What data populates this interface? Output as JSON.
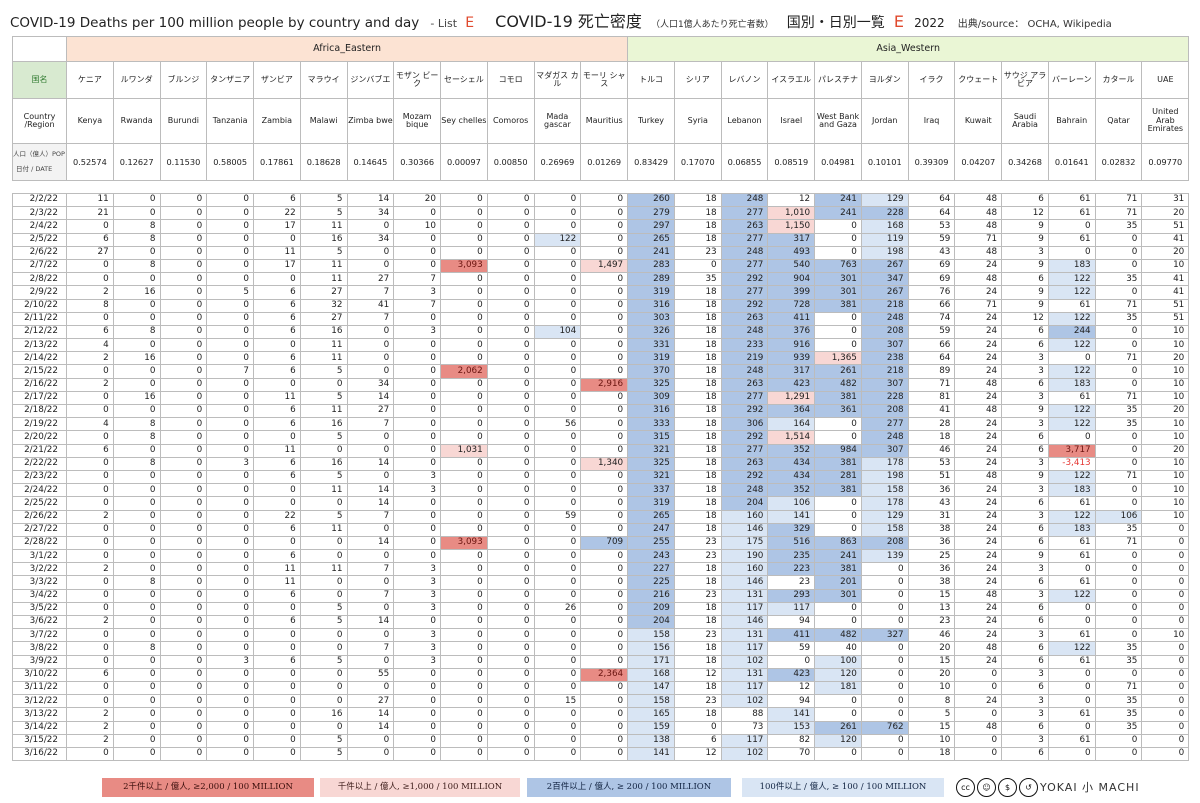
{
  "header": {
    "title_en": "COVID-19 Deaths per 100 million people by country and day",
    "list_label": "- List",
    "list_letter": "E",
    "title_jp": "COVID-19 死亡密度",
    "subtitle_jp": "（人口1億人あたり死亡者数）",
    "title_jp2": "国別・日別一覧",
    "list_letter2": "E",
    "year": "2022",
    "source": "出典/source： OCHA, Wikipedia"
  },
  "regions": [
    {
      "name": "Africa_Eastern",
      "span": 12
    },
    {
      "name": "Asia_Western",
      "span": 12
    }
  ],
  "row_labels": {
    "kokumei": "国名",
    "country_region": "Country /Region",
    "pop_top": "人口（億人）POP（億人）",
    "pop_bottom": "日付 / DATE"
  },
  "countries": [
    {
      "jp": "ケニア",
      "en": "Kenya",
      "pop": "0.52574"
    },
    {
      "jp": "ルワンダ",
      "en": "Rwanda",
      "pop": "0.12627"
    },
    {
      "jp": "ブルンジ",
      "en": "Burundi",
      "pop": "0.11530"
    },
    {
      "jp": "タンザニア",
      "en": "Tanzania",
      "pop": "0.58005"
    },
    {
      "jp": "ザンビア",
      "en": "Zambia",
      "pop": "0.17861"
    },
    {
      "jp": "マラウイ",
      "en": "Malawi",
      "pop": "0.18628"
    },
    {
      "jp": "ジンバブエ",
      "en": "Zimba bwe",
      "pop": "0.14645"
    },
    {
      "jp": "モザン ビーク",
      "en": "Mozam bique",
      "pop": "0.30366"
    },
    {
      "jp": "セーシェル",
      "en": "Sey chelles",
      "pop": "0.00097"
    },
    {
      "jp": "コモロ",
      "en": "Comoros",
      "pop": "0.00850"
    },
    {
      "jp": "マダガス カル",
      "en": "Mada gascar",
      "pop": "0.26969"
    },
    {
      "jp": "モーリ シャス",
      "en": "Mauritius",
      "pop": "0.01269"
    },
    {
      "jp": "トルコ",
      "en": "Turkey",
      "pop": "0.83429"
    },
    {
      "jp": "シリア",
      "en": "Syria",
      "pop": "0.17070"
    },
    {
      "jp": "レバノン",
      "en": "Lebanon",
      "pop": "0.06855"
    },
    {
      "jp": "イスラエル",
      "en": "Israel",
      "pop": "0.08519"
    },
    {
      "jp": "パレスチナ",
      "en": "West Bank and Gaza",
      "pop": "0.04981"
    },
    {
      "jp": "ヨルダン",
      "en": "Jordan",
      "pop": "0.10101"
    },
    {
      "jp": "イラク",
      "en": "Iraq",
      "pop": "0.39309"
    },
    {
      "jp": "クウェート",
      "en": "Kuwait",
      "pop": "0.04207"
    },
    {
      "jp": "サウジ アラビア",
      "en": "Saudi Arabia",
      "pop": "0.34268"
    },
    {
      "jp": "バーレーン",
      "en": "Bahrain",
      "pop": "0.01641"
    },
    {
      "jp": "カタール",
      "en": "Qatar",
      "pop": "0.02832"
    },
    {
      "jp": "UAE",
      "en": "United Arab Emirates",
      "pop": "0.09770"
    }
  ],
  "rows": [
    {
      "date": "2/2/22",
      "v": [
        "11",
        "0",
        "0",
        "0",
        "6",
        "5",
        "14",
        "20",
        "0",
        "0",
        "0",
        "0",
        "260",
        "18",
        "248",
        "12",
        "241",
        "129",
        "64",
        "48",
        "6",
        "61",
        "71",
        "31"
      ]
    },
    {
      "date": "2/3/22",
      "v": [
        "21",
        "0",
        "0",
        "0",
        "22",
        "5",
        "34",
        "0",
        "0",
        "0",
        "0",
        "0",
        "279",
        "18",
        "277",
        "1,010",
        "241",
        "228",
        "64",
        "48",
        "12",
        "61",
        "71",
        "20"
      ]
    },
    {
      "date": "2/4/22",
      "v": [
        "0",
        "8",
        "0",
        "0",
        "17",
        "11",
        "0",
        "10",
        "0",
        "0",
        "0",
        "0",
        "297",
        "18",
        "263",
        "1,150",
        "0",
        "168",
        "53",
        "48",
        "9",
        "0",
        "35",
        "51"
      ]
    },
    {
      "date": "2/5/22",
      "v": [
        "6",
        "8",
        "0",
        "0",
        "0",
        "16",
        "34",
        "0",
        "0",
        "0",
        "122",
        "0",
        "265",
        "18",
        "277",
        "317",
        "0",
        "119",
        "59",
        "71",
        "9",
        "61",
        "0",
        "41"
      ]
    },
    {
      "date": "2/6/22",
      "v": [
        "27",
        "0",
        "0",
        "0",
        "11",
        "5",
        "0",
        "0",
        "0",
        "0",
        "0",
        "0",
        "241",
        "23",
        "248",
        "493",
        "0",
        "198",
        "43",
        "48",
        "3",
        "0",
        "0",
        "20"
      ]
    },
    {
      "date": "2/7/22",
      "v": [
        "0",
        "8",
        "0",
        "0",
        "17",
        "11",
        "0",
        "0",
        "3,093",
        "0",
        "0",
        "1,497",
        "283",
        "0",
        "277",
        "540",
        "763",
        "267",
        "69",
        "24",
        "9",
        "183",
        "0",
        "10"
      ]
    },
    {
      "date": "2/8/22",
      "v": [
        "0",
        "0",
        "0",
        "0",
        "0",
        "11",
        "27",
        "7",
        "0",
        "0",
        "0",
        "0",
        "289",
        "35",
        "292",
        "904",
        "301",
        "347",
        "69",
        "48",
        "6",
        "122",
        "35",
        "41"
      ]
    },
    {
      "date": "2/9/22",
      "v": [
        "2",
        "16",
        "0",
        "5",
        "6",
        "27",
        "7",
        "3",
        "0",
        "0",
        "0",
        "0",
        "319",
        "18",
        "277",
        "399",
        "301",
        "267",
        "76",
        "24",
        "9",
        "122",
        "0",
        "41"
      ]
    },
    {
      "date": "2/10/22",
      "v": [
        "8",
        "0",
        "0",
        "0",
        "6",
        "32",
        "41",
        "7",
        "0",
        "0",
        "0",
        "0",
        "316",
        "18",
        "292",
        "728",
        "381",
        "218",
        "66",
        "71",
        "9",
        "61",
        "71",
        "51"
      ]
    },
    {
      "date": "2/11/22",
      "v": [
        "0",
        "0",
        "0",
        "0",
        "6",
        "27",
        "7",
        "0",
        "0",
        "0",
        "0",
        "0",
        "303",
        "18",
        "263",
        "411",
        "0",
        "248",
        "74",
        "24",
        "12",
        "122",
        "35",
        "51"
      ]
    },
    {
      "date": "2/12/22",
      "v": [
        "6",
        "8",
        "0",
        "0",
        "6",
        "16",
        "0",
        "3",
        "0",
        "0",
        "104",
        "0",
        "326",
        "18",
        "248",
        "376",
        "0",
        "208",
        "59",
        "24",
        "6",
        "244",
        "0",
        "10"
      ]
    },
    {
      "date": "2/13/22",
      "v": [
        "4",
        "0",
        "0",
        "0",
        "0",
        "11",
        "0",
        "0",
        "0",
        "0",
        "0",
        "0",
        "331",
        "18",
        "233",
        "916",
        "0",
        "307",
        "66",
        "24",
        "6",
        "122",
        "0",
        "10"
      ]
    },
    {
      "date": "2/14/22",
      "v": [
        "2",
        "16",
        "0",
        "0",
        "6",
        "11",
        "0",
        "0",
        "0",
        "0",
        "0",
        "0",
        "319",
        "18",
        "219",
        "939",
        "1,365",
        "238",
        "64",
        "24",
        "3",
        "0",
        "71",
        "20"
      ]
    },
    {
      "date": "2/15/22",
      "v": [
        "0",
        "0",
        "0",
        "7",
        "6",
        "5",
        "0",
        "0",
        "2,062",
        "0",
        "0",
        "0",
        "370",
        "18",
        "248",
        "317",
        "261",
        "218",
        "89",
        "24",
        "3",
        "122",
        "0",
        "10"
      ]
    },
    {
      "date": "2/16/22",
      "v": [
        "2",
        "0",
        "0",
        "0",
        "0",
        "0",
        "34",
        "0",
        "0",
        "0",
        "0",
        "2,916",
        "325",
        "18",
        "263",
        "423",
        "482",
        "307",
        "71",
        "48",
        "6",
        "183",
        "0",
        "10"
      ]
    },
    {
      "date": "2/17/22",
      "v": [
        "0",
        "16",
        "0",
        "0",
        "11",
        "5",
        "14",
        "0",
        "0",
        "0",
        "0",
        "0",
        "309",
        "18",
        "277",
        "1,291",
        "381",
        "228",
        "81",
        "24",
        "3",
        "61",
        "71",
        "10"
      ]
    },
    {
      "date": "2/18/22",
      "v": [
        "0",
        "0",
        "0",
        "0",
        "6",
        "11",
        "27",
        "0",
        "0",
        "0",
        "0",
        "0",
        "316",
        "18",
        "292",
        "364",
        "361",
        "208",
        "41",
        "48",
        "9",
        "122",
        "35",
        "20"
      ]
    },
    {
      "date": "2/19/22",
      "v": [
        "4",
        "8",
        "0",
        "0",
        "6",
        "16",
        "7",
        "0",
        "0",
        "0",
        "56",
        "0",
        "333",
        "18",
        "306",
        "164",
        "0",
        "277",
        "28",
        "24",
        "3",
        "122",
        "35",
        "10"
      ]
    },
    {
      "date": "2/20/22",
      "v": [
        "0",
        "8",
        "0",
        "0",
        "0",
        "5",
        "0",
        "0",
        "0",
        "0",
        "0",
        "0",
        "315",
        "18",
        "292",
        "1,514",
        "0",
        "248",
        "18",
        "24",
        "6",
        "0",
        "0",
        "10"
      ]
    },
    {
      "date": "2/21/22",
      "v": [
        "6",
        "0",
        "0",
        "0",
        "11",
        "0",
        "0",
        "0",
        "1,031",
        "0",
        "0",
        "0",
        "321",
        "18",
        "277",
        "352",
        "984",
        "307",
        "46",
        "24",
        "6",
        "3,717",
        "0",
        "20"
      ]
    },
    {
      "date": "2/22/22",
      "v": [
        "0",
        "8",
        "0",
        "3",
        "6",
        "16",
        "14",
        "0",
        "0",
        "0",
        "0",
        "1,340",
        "325",
        "18",
        "263",
        "434",
        "381",
        "178",
        "53",
        "24",
        "3",
        "-3,413",
        "0",
        "10"
      ]
    },
    {
      "date": "2/23/22",
      "v": [
        "0",
        "0",
        "0",
        "0",
        "6",
        "5",
        "0",
        "3",
        "0",
        "0",
        "0",
        "0",
        "321",
        "18",
        "292",
        "434",
        "281",
        "198",
        "51",
        "48",
        "9",
        "122",
        "71",
        "10"
      ]
    },
    {
      "date": "2/24/22",
      "v": [
        "0",
        "0",
        "0",
        "0",
        "0",
        "11",
        "14",
        "3",
        "0",
        "0",
        "0",
        "0",
        "337",
        "18",
        "248",
        "352",
        "381",
        "158",
        "36",
        "24",
        "3",
        "183",
        "0",
        "10"
      ]
    },
    {
      "date": "2/25/22",
      "v": [
        "0",
        "0",
        "0",
        "0",
        "0",
        "0",
        "14",
        "0",
        "0",
        "0",
        "0",
        "0",
        "319",
        "18",
        "204",
        "106",
        "0",
        "178",
        "43",
        "24",
        "6",
        "61",
        "0",
        "10"
      ]
    },
    {
      "date": "2/26/22",
      "v": [
        "2",
        "0",
        "0",
        "0",
        "22",
        "5",
        "7",
        "0",
        "0",
        "0",
        "59",
        "0",
        "265",
        "18",
        "160",
        "141",
        "0",
        "129",
        "31",
        "24",
        "3",
        "122",
        "106",
        "10"
      ]
    },
    {
      "date": "2/27/22",
      "v": [
        "0",
        "0",
        "0",
        "0",
        "6",
        "11",
        "0",
        "0",
        "0",
        "0",
        "0",
        "0",
        "247",
        "18",
        "146",
        "329",
        "0",
        "158",
        "38",
        "24",
        "6",
        "183",
        "35",
        "0"
      ]
    },
    {
      "date": "2/28/22",
      "v": [
        "0",
        "0",
        "0",
        "0",
        "0",
        "0",
        "14",
        "0",
        "3,093",
        "0",
        "0",
        "709",
        "255",
        "23",
        "175",
        "516",
        "863",
        "208",
        "36",
        "24",
        "6",
        "61",
        "71",
        "0"
      ]
    },
    {
      "date": "3/1/22",
      "v": [
        "0",
        "0",
        "0",
        "0",
        "6",
        "0",
        "0",
        "0",
        "0",
        "0",
        "0",
        "0",
        "243",
        "23",
        "190",
        "235",
        "241",
        "139",
        "25",
        "24",
        "9",
        "61",
        "0",
        "0"
      ]
    },
    {
      "date": "3/2/22",
      "v": [
        "2",
        "0",
        "0",
        "0",
        "11",
        "11",
        "7",
        "3",
        "0",
        "0",
        "0",
        "0",
        "227",
        "18",
        "160",
        "223",
        "381",
        "0",
        "36",
        "24",
        "3",
        "0",
        "0",
        "0"
      ]
    },
    {
      "date": "3/3/22",
      "v": [
        "0",
        "8",
        "0",
        "0",
        "11",
        "0",
        "0",
        "3",
        "0",
        "0",
        "0",
        "0",
        "225",
        "18",
        "146",
        "23",
        "201",
        "0",
        "38",
        "24",
        "6",
        "61",
        "0",
        "0"
      ]
    },
    {
      "date": "3/4/22",
      "v": [
        "0",
        "0",
        "0",
        "0",
        "6",
        "0",
        "7",
        "3",
        "0",
        "0",
        "0",
        "0",
        "216",
        "23",
        "131",
        "293",
        "301",
        "0",
        "15",
        "48",
        "3",
        "122",
        "0",
        "0"
      ]
    },
    {
      "date": "3/5/22",
      "v": [
        "0",
        "0",
        "0",
        "0",
        "0",
        "5",
        "0",
        "3",
        "0",
        "0",
        "26",
        "0",
        "209",
        "18",
        "117",
        "117",
        "0",
        "0",
        "13",
        "24",
        "6",
        "0",
        "0",
        "0"
      ]
    },
    {
      "date": "3/6/22",
      "v": [
        "2",
        "0",
        "0",
        "0",
        "6",
        "5",
        "14",
        "0",
        "0",
        "0",
        "0",
        "0",
        "204",
        "18",
        "146",
        "94",
        "0",
        "0",
        "23",
        "24",
        "6",
        "0",
        "0",
        "0"
      ]
    },
    {
      "date": "3/7/22",
      "v": [
        "0",
        "0",
        "0",
        "0",
        "0",
        "0",
        "0",
        "3",
        "0",
        "0",
        "0",
        "0",
        "158",
        "23",
        "131",
        "411",
        "482",
        "327",
        "46",
        "24",
        "3",
        "61",
        "0",
        "10"
      ]
    },
    {
      "date": "3/8/22",
      "v": [
        "0",
        "8",
        "0",
        "0",
        "0",
        "0",
        "7",
        "3",
        "0",
        "0",
        "0",
        "0",
        "156",
        "18",
        "117",
        "59",
        "40",
        "0",
        "20",
        "48",
        "6",
        "122",
        "35",
        "0"
      ]
    },
    {
      "date": "3/9/22",
      "v": [
        "0",
        "0",
        "0",
        "3",
        "6",
        "5",
        "0",
        "3",
        "0",
        "0",
        "0",
        "0",
        "171",
        "18",
        "102",
        "0",
        "100",
        "0",
        "15",
        "24",
        "6",
        "61",
        "35",
        "0"
      ]
    },
    {
      "date": "3/10/22",
      "v": [
        "6",
        "0",
        "0",
        "0",
        "0",
        "0",
        "55",
        "0",
        "0",
        "0",
        "0",
        "2,364",
        "168",
        "12",
        "131",
        "423",
        "120",
        "0",
        "20",
        "0",
        "3",
        "0",
        "0",
        "0"
      ]
    },
    {
      "date": "3/11/22",
      "v": [
        "0",
        "0",
        "0",
        "0",
        "0",
        "0",
        "0",
        "0",
        "0",
        "0",
        "0",
        "0",
        "147",
        "18",
        "117",
        "12",
        "181",
        "0",
        "10",
        "0",
        "6",
        "0",
        "71",
        "0"
      ]
    },
    {
      "date": "3/12/22",
      "v": [
        "0",
        "0",
        "0",
        "0",
        "0",
        "0",
        "27",
        "0",
        "0",
        "0",
        "15",
        "0",
        "158",
        "23",
        "102",
        "94",
        "0",
        "0",
        "8",
        "24",
        "3",
        "0",
        "35",
        "0"
      ]
    },
    {
      "date": "3/13/22",
      "v": [
        "2",
        "0",
        "0",
        "0",
        "0",
        "16",
        "14",
        "0",
        "0",
        "0",
        "0",
        "0",
        "165",
        "18",
        "88",
        "141",
        "0",
        "0",
        "5",
        "0",
        "3",
        "61",
        "35",
        "0"
      ]
    },
    {
      "date": "3/14/22",
      "v": [
        "2",
        "0",
        "0",
        "0",
        "0",
        "0",
        "14",
        "0",
        "0",
        "0",
        "0",
        "0",
        "159",
        "0",
        "73",
        "153",
        "261",
        "762",
        "15",
        "48",
        "6",
        "0",
        "35",
        "0"
      ]
    },
    {
      "date": "3/15/22",
      "v": [
        "2",
        "0",
        "0",
        "0",
        "0",
        "5",
        "0",
        "0",
        "0",
        "0",
        "0",
        "0",
        "138",
        "6",
        "117",
        "82",
        "120",
        "0",
        "10",
        "0",
        "3",
        "61",
        "0",
        "0"
      ]
    },
    {
      "date": "3/16/22",
      "v": [
        "0",
        "0",
        "0",
        "0",
        "0",
        "5",
        "0",
        "0",
        "0",
        "0",
        "0",
        "0",
        "141",
        "12",
        "102",
        "70",
        "0",
        "0",
        "18",
        "0",
        "6",
        "0",
        "0",
        "0"
      ]
    }
  ],
  "legend": [
    {
      "label": "2千件以上 / 億人, ≥2,000 / 100 MILLION",
      "color": "#e88b84"
    },
    {
      "label": "千件以上 / 億人, ≥1,000 / 100 MILLION",
      "color": "#f8d7d4"
    },
    {
      "label": "2百件以上 / 億人, ≥ 200 / 100 MILLION",
      "color": "#aec5e5"
    },
    {
      "label": "100件以上 / 億人, ≥ 100 / 100 MILLION",
      "color": "#d9e5f4"
    }
  ],
  "license_icons": [
    "cc-icon",
    "by-icon",
    "nc-icon",
    "sa-icon"
  ],
  "logo_text": "YOKAI 小 MACHI"
}
